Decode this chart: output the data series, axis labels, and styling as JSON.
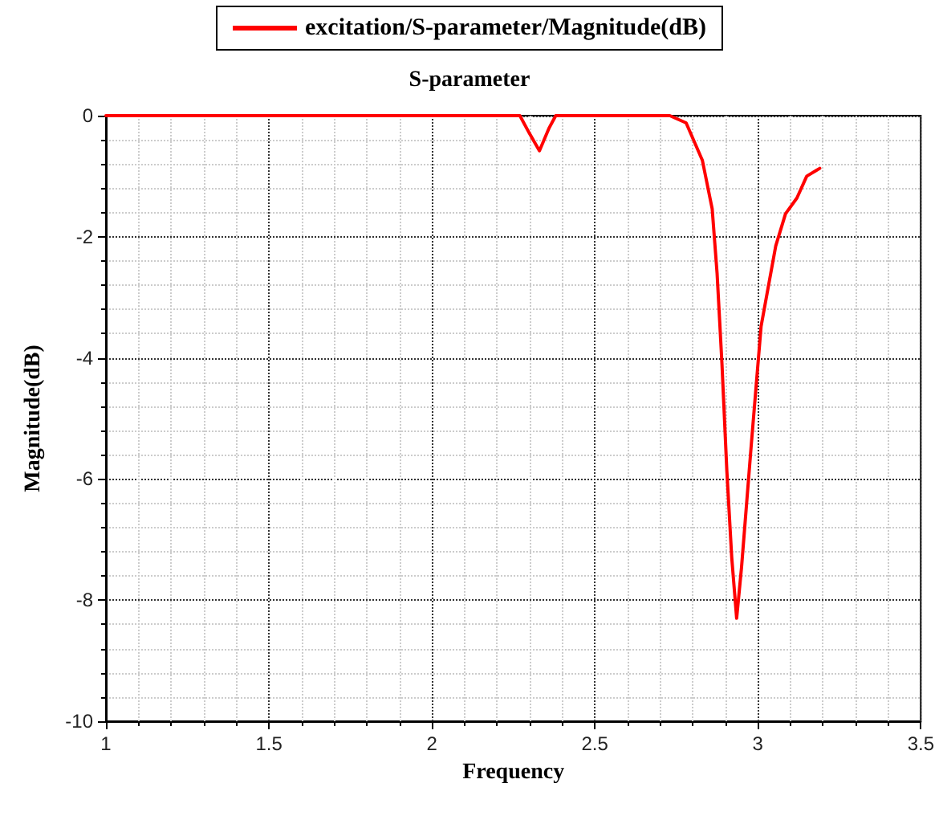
{
  "chart_data": {
    "type": "line",
    "title": "S-parameter",
    "xlabel": "Frequency",
    "ylabel": "Magnitude(dB)",
    "legend": "top",
    "grid": true,
    "line_style": "solid",
    "marker": "none",
    "xlim": [
      1,
      3.5
    ],
    "xticks": [
      1,
      1.5,
      2,
      2.5,
      3,
      3.5
    ],
    "ylim": [
      -10,
      0
    ],
    "yticks": [
      -10,
      -8,
      -6,
      -4,
      -2,
      0
    ],
    "series": [
      {
        "name": "excitation/S-parameter/Magnitude(dB)",
        "color": "#ff0000",
        "x": [
          1,
          1.5,
          2,
          2.27,
          2.3,
          2.33,
          2.36,
          2.38,
          2.5,
          2.7,
          2.73,
          2.78,
          2.83,
          2.86,
          2.875,
          2.89,
          2.905,
          2.92,
          2.935,
          2.95,
          2.98,
          3.01,
          3.055,
          3.085,
          3.12,
          3.15,
          3.19
        ],
        "values": [
          0,
          0,
          0,
          0,
          -0.3,
          -0.58,
          -0.2,
          0,
          0,
          0,
          0,
          -0.12,
          -0.74,
          -1.54,
          -2.6,
          -4.1,
          -5.87,
          -7.3,
          -8.3,
          -7.46,
          -5.43,
          -3.48,
          -2.15,
          -1.62,
          -1.36,
          -1.0,
          -0.87
        ]
      }
    ]
  }
}
